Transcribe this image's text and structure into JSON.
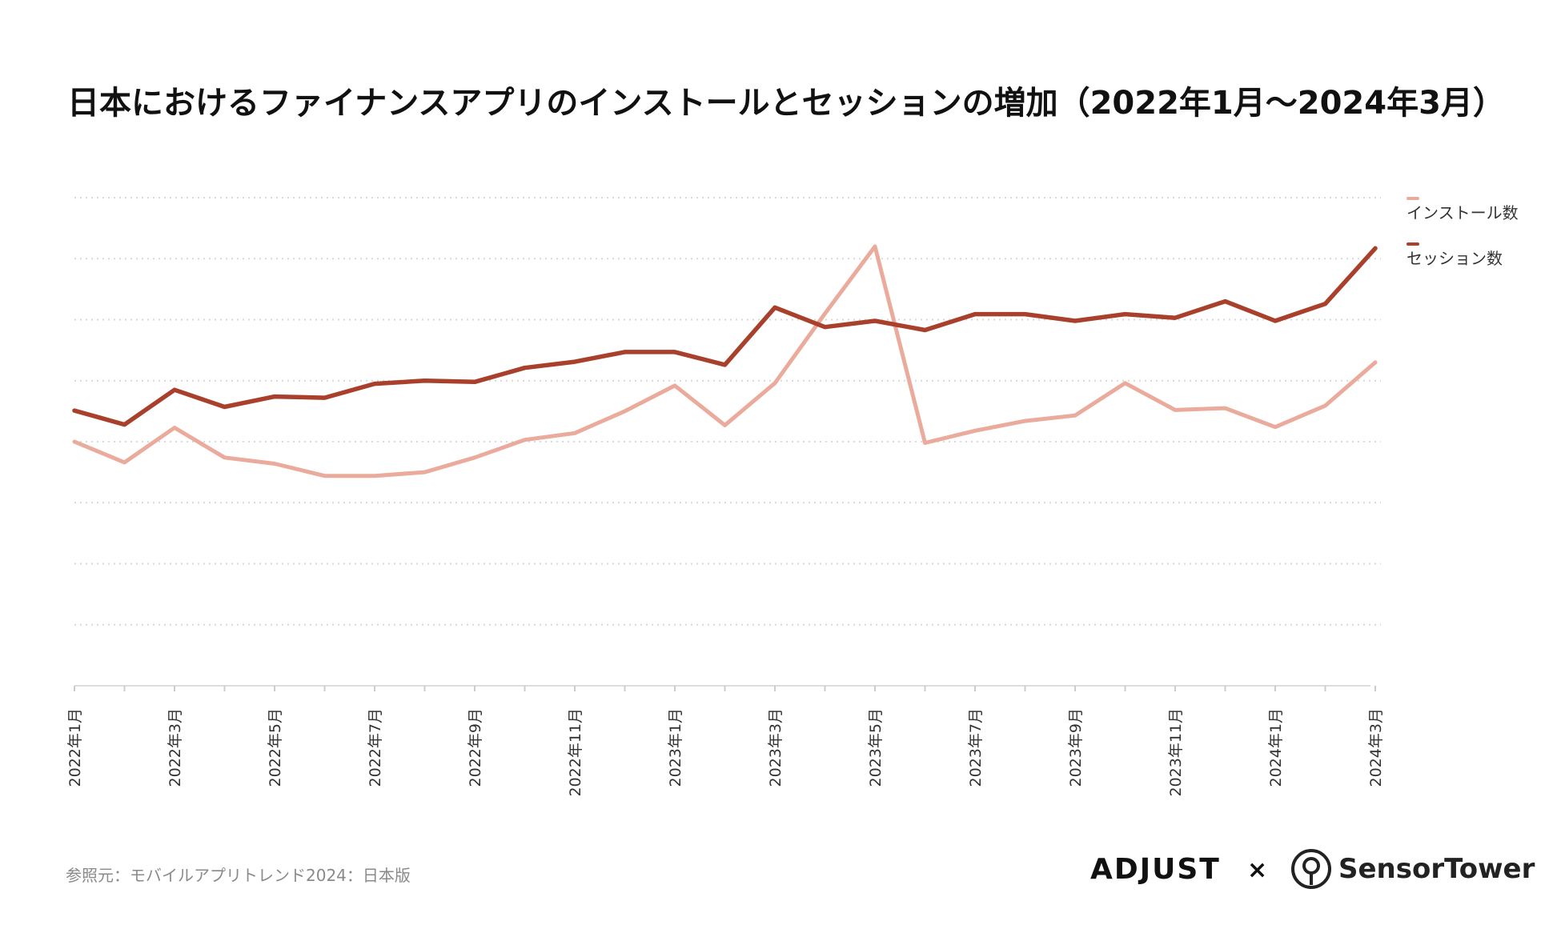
{
  "chart_data": {
    "type": "line",
    "title": "日本におけるファイナンスアプリのインストールとセッションの増加（2022年1月〜2024年3月）",
    "xlabel": "",
    "ylabel": "",
    "grid": true,
    "legend_position": "top-right",
    "x": [
      "2022年1月",
      "2022年2月",
      "2022年3月",
      "2022年4月",
      "2022年5月",
      "2022年6月",
      "2022年7月",
      "2022年8月",
      "2022年9月",
      "2022年10月",
      "2022年11月",
      "2022年12月",
      "2023年1月",
      "2023年2月",
      "2023年3月",
      "2023年4月",
      "2023年5月",
      "2023年6月",
      "2023年7月",
      "2023年8月",
      "2023年9月",
      "2023年10月",
      "2023年11月",
      "2023年12月",
      "2024年1月",
      "2024年2月",
      "2024年3月"
    ],
    "tick_labels": [
      "2022年1月",
      "",
      "2022年3月",
      "",
      "2022年5月",
      "",
      "2022年7月",
      "",
      "2022年9月",
      "",
      "2022年11月",
      "",
      "2023年1月",
      "",
      "2023年3月",
      "",
      "2023年5月",
      "",
      "2023年7月",
      "",
      "2023年9月",
      "",
      "2023年11月",
      "",
      "2024年1月",
      "",
      "2024年3月"
    ],
    "ylim": [
      0,
      8
    ],
    "series": [
      {
        "name": "インストール数",
        "color": "#eaaa9c",
        "values": [
          4.0,
          3.66,
          4.23,
          3.74,
          3.64,
          3.44,
          3.44,
          3.5,
          3.74,
          4.03,
          4.14,
          4.5,
          4.92,
          4.27,
          4.96,
          6.1,
          7.2,
          3.98,
          4.18,
          4.34,
          4.43,
          4.96,
          4.52,
          4.55,
          4.24,
          4.59,
          5.3
        ]
      },
      {
        "name": "セッション数",
        "color": "#a8402c",
        "values": [
          4.51,
          4.28,
          4.85,
          4.57,
          4.74,
          4.72,
          4.95,
          5.0,
          4.98,
          5.21,
          5.31,
          5.47,
          5.47,
          5.26,
          6.2,
          5.88,
          5.98,
          5.83,
          6.09,
          6.09,
          5.98,
          6.09,
          6.03,
          6.3,
          5.98,
          6.26,
          7.17
        ]
      }
    ]
  },
  "source": "参照元：モバイルアプリトレンド2024：日本版",
  "brands": {
    "adjust": "ADJUST",
    "separator": "×",
    "sensor_tower": "SensorTower"
  }
}
